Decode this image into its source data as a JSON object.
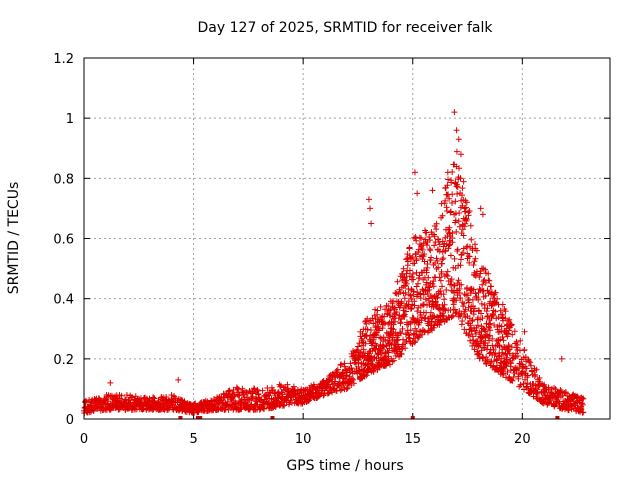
{
  "chart_data": {
    "type": "scatter",
    "title": "Day 127 of 2025, SRMTID for receiver falk",
    "xlabel": "GPS time / hours",
    "ylabel": "SRMTID / TECUs",
    "xlim": [
      0,
      24
    ],
    "ylim": [
      0,
      1.2
    ],
    "xticks": [
      0,
      5,
      10,
      15,
      20
    ],
    "xtick_labels": [
      "0",
      "5",
      "10",
      "15",
      "20"
    ],
    "yticks": [
      0,
      0.2,
      0.4,
      0.6,
      0.8,
      1.0,
      1.2
    ],
    "ytick_labels": [
      "0",
      "0.2",
      "0.4",
      "0.6",
      "0.8",
      "1",
      "1.2"
    ],
    "grid": true,
    "marker": "+",
    "color": "#e00000",
    "x_coverage": [
      0.0,
      22.8
    ],
    "envelope": [
      {
        "x": 0.0,
        "low": 0.02,
        "high": 0.06
      },
      {
        "x": 1.0,
        "low": 0.03,
        "high": 0.08
      },
      {
        "x": 2.0,
        "low": 0.03,
        "high": 0.08
      },
      {
        "x": 3.0,
        "low": 0.03,
        "high": 0.07
      },
      {
        "x": 4.0,
        "low": 0.03,
        "high": 0.08
      },
      {
        "x": 5.0,
        "low": 0.02,
        "high": 0.05
      },
      {
        "x": 6.0,
        "low": 0.03,
        "high": 0.07
      },
      {
        "x": 7.0,
        "low": 0.03,
        "high": 0.11
      },
      {
        "x": 8.0,
        "low": 0.03,
        "high": 0.1
      },
      {
        "x": 9.0,
        "low": 0.04,
        "high": 0.12
      },
      {
        "x": 10.0,
        "low": 0.05,
        "high": 0.1
      },
      {
        "x": 11.0,
        "low": 0.08,
        "high": 0.13
      },
      {
        "x": 12.0,
        "low": 0.1,
        "high": 0.2
      },
      {
        "x": 13.0,
        "low": 0.15,
        "high": 0.35
      },
      {
        "x": 14.0,
        "low": 0.18,
        "high": 0.4
      },
      {
        "x": 15.0,
        "low": 0.25,
        "high": 0.6
      },
      {
        "x": 16.0,
        "low": 0.3,
        "high": 0.65
      },
      {
        "x": 17.0,
        "low": 0.35,
        "high": 0.9
      },
      {
        "x": 18.0,
        "low": 0.2,
        "high": 0.55
      },
      {
        "x": 19.0,
        "low": 0.15,
        "high": 0.4
      },
      {
        "x": 20.0,
        "low": 0.1,
        "high": 0.25
      },
      {
        "x": 21.0,
        "low": 0.05,
        "high": 0.12
      },
      {
        "x": 22.0,
        "low": 0.03,
        "high": 0.09
      },
      {
        "x": 22.8,
        "low": 0.02,
        "high": 0.07
      }
    ],
    "spikes": [
      {
        "x": 13.0,
        "y": 0.73
      },
      {
        "x": 13.05,
        "y": 0.7
      },
      {
        "x": 13.1,
        "y": 0.65
      },
      {
        "x": 15.1,
        "y": 0.82
      },
      {
        "x": 15.2,
        "y": 0.75
      },
      {
        "x": 15.9,
        "y": 0.76
      },
      {
        "x": 16.6,
        "y": 0.82
      },
      {
        "x": 16.9,
        "y": 1.02
      },
      {
        "x": 17.0,
        "y": 0.96
      },
      {
        "x": 17.1,
        "y": 0.93
      },
      {
        "x": 17.2,
        "y": 0.88
      },
      {
        "x": 18.1,
        "y": 0.7
      },
      {
        "x": 18.2,
        "y": 0.68
      },
      {
        "x": 20.1,
        "y": 0.29
      },
      {
        "x": 4.3,
        "y": 0.13
      },
      {
        "x": 1.2,
        "y": 0.12
      },
      {
        "x": 21.8,
        "y": 0.2
      }
    ],
    "baseline_markers": [
      4.4,
      5.2,
      5.3,
      8.6,
      15.0,
      21.6
    ]
  }
}
